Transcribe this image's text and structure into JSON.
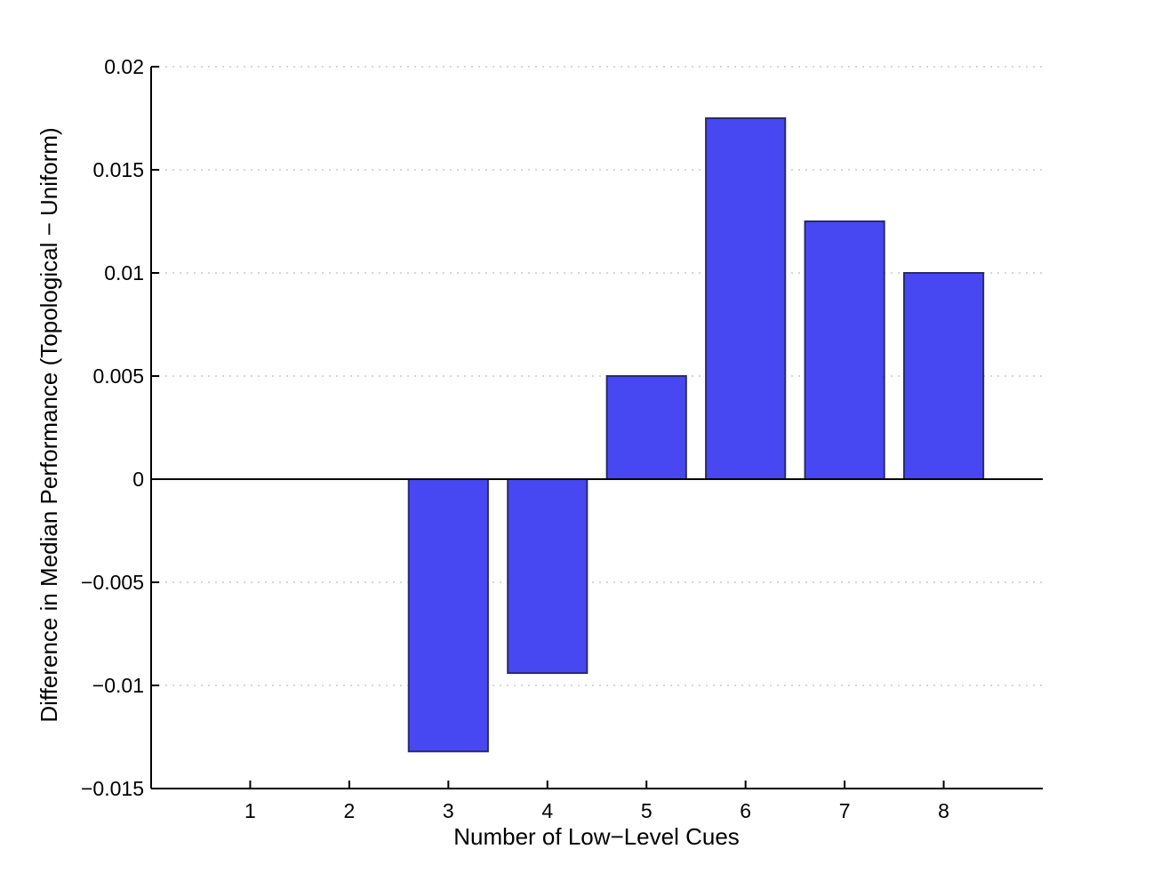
{
  "chart_data": {
    "type": "bar",
    "categories": [
      "1",
      "2",
      "3",
      "4",
      "5",
      "6",
      "7",
      "8"
    ],
    "values": [
      0,
      0,
      -0.0132,
      -0.0094,
      0.005,
      0.0175,
      0.0125,
      0.01
    ],
    "xlabel": "Number of Low−Level Cues",
    "ylabel": "Difference in Median Performance (Topological − Uniform)",
    "ylim": [
      -0.015,
      0.02
    ],
    "xlim": [
      0,
      9
    ],
    "yticks": [
      -0.015,
      -0.01,
      -0.005,
      0,
      0.005,
      0.01,
      0.015,
      0.02
    ],
    "ytick_labels": [
      "−0.015",
      "−0.01",
      "−0.005",
      "0",
      "0.005",
      "0.01",
      "0.015",
      "0.02"
    ],
    "ygrid": "dotted",
    "bar_color": "#4848f2",
    "bar_edge_color": "#2a2a6e"
  }
}
